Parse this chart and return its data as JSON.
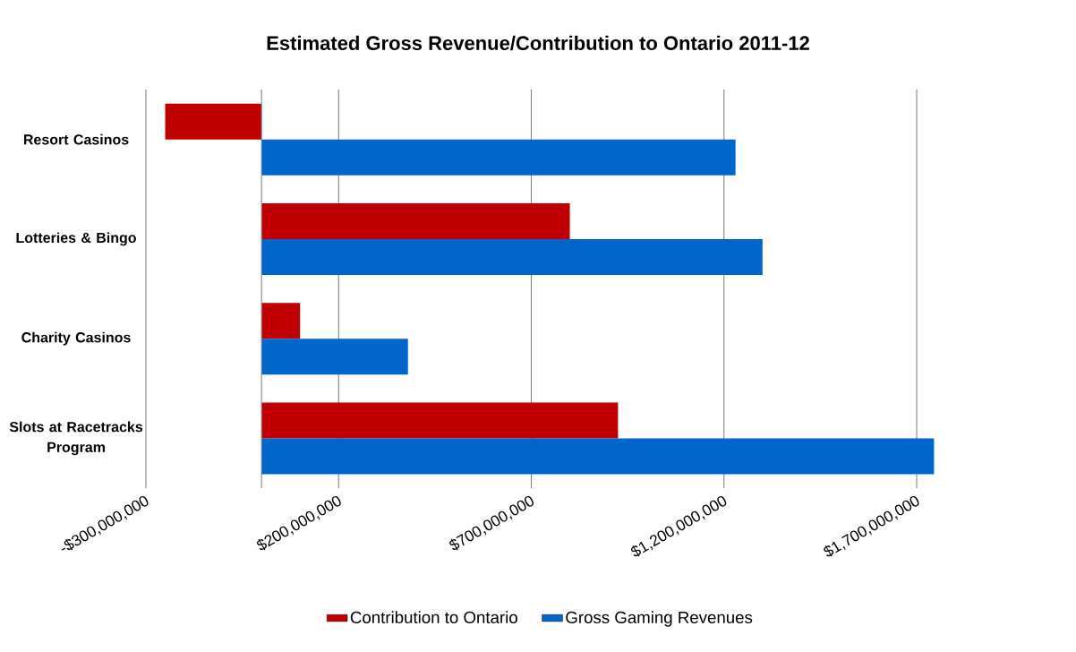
{
  "chart_data": {
    "type": "bar",
    "orientation": "horizontal",
    "title": "Estimated Gross Revenue/Contribution to Ontario 2011-12",
    "categories": [
      "Resort Casinos",
      "Lotteries & Bingo",
      "Charity Casinos",
      "Slots at Racetracks Program"
    ],
    "series": [
      {
        "name": "Contribution to Ontario",
        "color": "#c00000",
        "values": [
          -250000000,
          800000000,
          100000000,
          925000000
        ]
      },
      {
        "name": "Gross Gaming Revenues",
        "color": "#0066cc",
        "values": [
          1230000000,
          1300000000,
          380000000,
          1745000000
        ]
      }
    ],
    "xlim": [
      -300000000,
      1750000000
    ],
    "xticks": [
      {
        "value": -300000000,
        "label": "-$300,000,000"
      },
      {
        "value": 200000000,
        "label": "$200,000,000"
      },
      {
        "value": 700000000,
        "label": "$700,000,000"
      },
      {
        "value": 1200000000,
        "label": "$1,200,000,000"
      },
      {
        "value": 1700000000,
        "label": "$1,700,000,000"
      }
    ],
    "grid": "x",
    "legend": "bottom"
  }
}
